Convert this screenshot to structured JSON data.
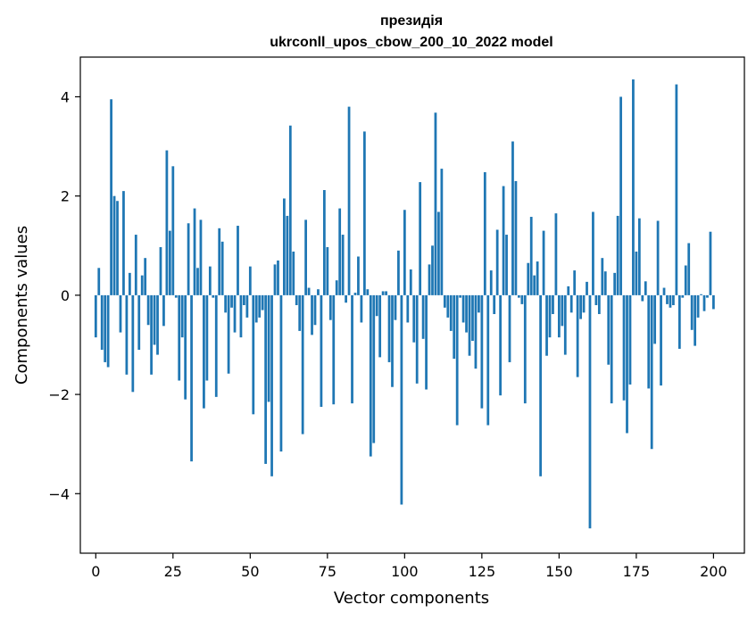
{
  "chart_data": {
    "type": "bar",
    "title_line1": "президія",
    "title_line2": "ukrconll_upos_cbow_200_10_2022 model",
    "xlabel": "Vector components",
    "ylabel": "Components values",
    "xlim": [
      -5,
      210
    ],
    "ylim": [
      -5.2,
      4.8
    ],
    "xticks": [
      0,
      25,
      50,
      75,
      100,
      125,
      150,
      175,
      200
    ],
    "yticks": [
      -4,
      -2,
      0,
      2,
      4
    ],
    "ytick_labels": [
      "−4",
      "−2",
      "0",
      "2",
      "4"
    ],
    "bar_color": "#1f77b4",
    "values": [
      -0.85,
      0.55,
      -1.1,
      -1.35,
      -1.45,
      3.95,
      2.0,
      1.9,
      -0.75,
      2.1,
      -1.6,
      0.45,
      -1.95,
      1.22,
      -1.1,
      0.4,
      0.75,
      -0.6,
      -1.6,
      -1.0,
      -1.2,
      0.97,
      -0.62,
      2.92,
      1.3,
      2.6,
      -0.05,
      -1.72,
      -0.85,
      -2.1,
      1.45,
      -3.35,
      1.75,
      0.55,
      1.52,
      -2.28,
      -1.72,
      0.58,
      -0.05,
      -2.05,
      1.35,
      1.08,
      -0.35,
      -1.58,
      -0.25,
      -0.75,
      1.4,
      -0.85,
      -0.2,
      -0.45,
      0.58,
      -2.4,
      -0.55,
      -0.45,
      -0.3,
      -3.4,
      -2.15,
      -3.65,
      0.62,
      0.7,
      -3.15,
      1.95,
      1.6,
      3.42,
      0.88,
      -0.2,
      -0.72,
      -2.8,
      1.52,
      0.15,
      -0.8,
      -0.6,
      0.12,
      -2.25,
      2.12,
      0.97,
      -0.5,
      -2.2,
      0.3,
      1.75,
      1.22,
      -0.15,
      3.8,
      -2.18,
      0.05,
      0.78,
      -0.55,
      3.3,
      0.12,
      -3.25,
      -2.98,
      -0.42,
      -1.25,
      0.08,
      0.08,
      -1.35,
      -1.85,
      -0.5,
      0.9,
      -4.22,
      1.72,
      -0.55,
      0.52,
      -0.95,
      -1.78,
      2.28,
      -0.88,
      -1.9,
      0.62,
      1.0,
      3.68,
      1.68,
      2.55,
      -0.25,
      -0.45,
      -0.72,
      -1.28,
      -2.62,
      -0.05,
      -0.55,
      -0.75,
      -1.22,
      -0.92,
      -1.48,
      -0.35,
      -2.28,
      2.48,
      -2.62,
      0.5,
      -0.38,
      1.32,
      -2.02,
      2.2,
      1.22,
      -1.35,
      3.1,
      2.3,
      -0.05,
      -0.18,
      -2.18,
      0.65,
      1.58,
      0.4,
      0.68,
      -3.65,
      1.3,
      -1.22,
      -0.85,
      -0.38,
      1.65,
      -0.85,
      -0.62,
      -1.2,
      0.18,
      -0.35,
      0.5,
      -1.65,
      -0.48,
      -0.35,
      0.27,
      -4.7,
      1.68,
      -0.2,
      -0.38,
      0.75,
      0.48,
      -1.4,
      -2.18,
      0.45,
      1.6,
      4.0,
      -2.12,
      -2.78,
      -1.8,
      4.35,
      0.88,
      1.55,
      -0.12,
      0.28,
      -1.88,
      -3.1,
      -0.98,
      1.5,
      -1.82,
      0.15,
      -0.18,
      -0.25,
      -0.2,
      4.25,
      -1.08,
      -0.05,
      0.6,
      1.05,
      -0.7,
      -1.02,
      -0.45,
      0.02,
      -0.32,
      -0.05,
      1.28,
      -0.28
    ]
  }
}
